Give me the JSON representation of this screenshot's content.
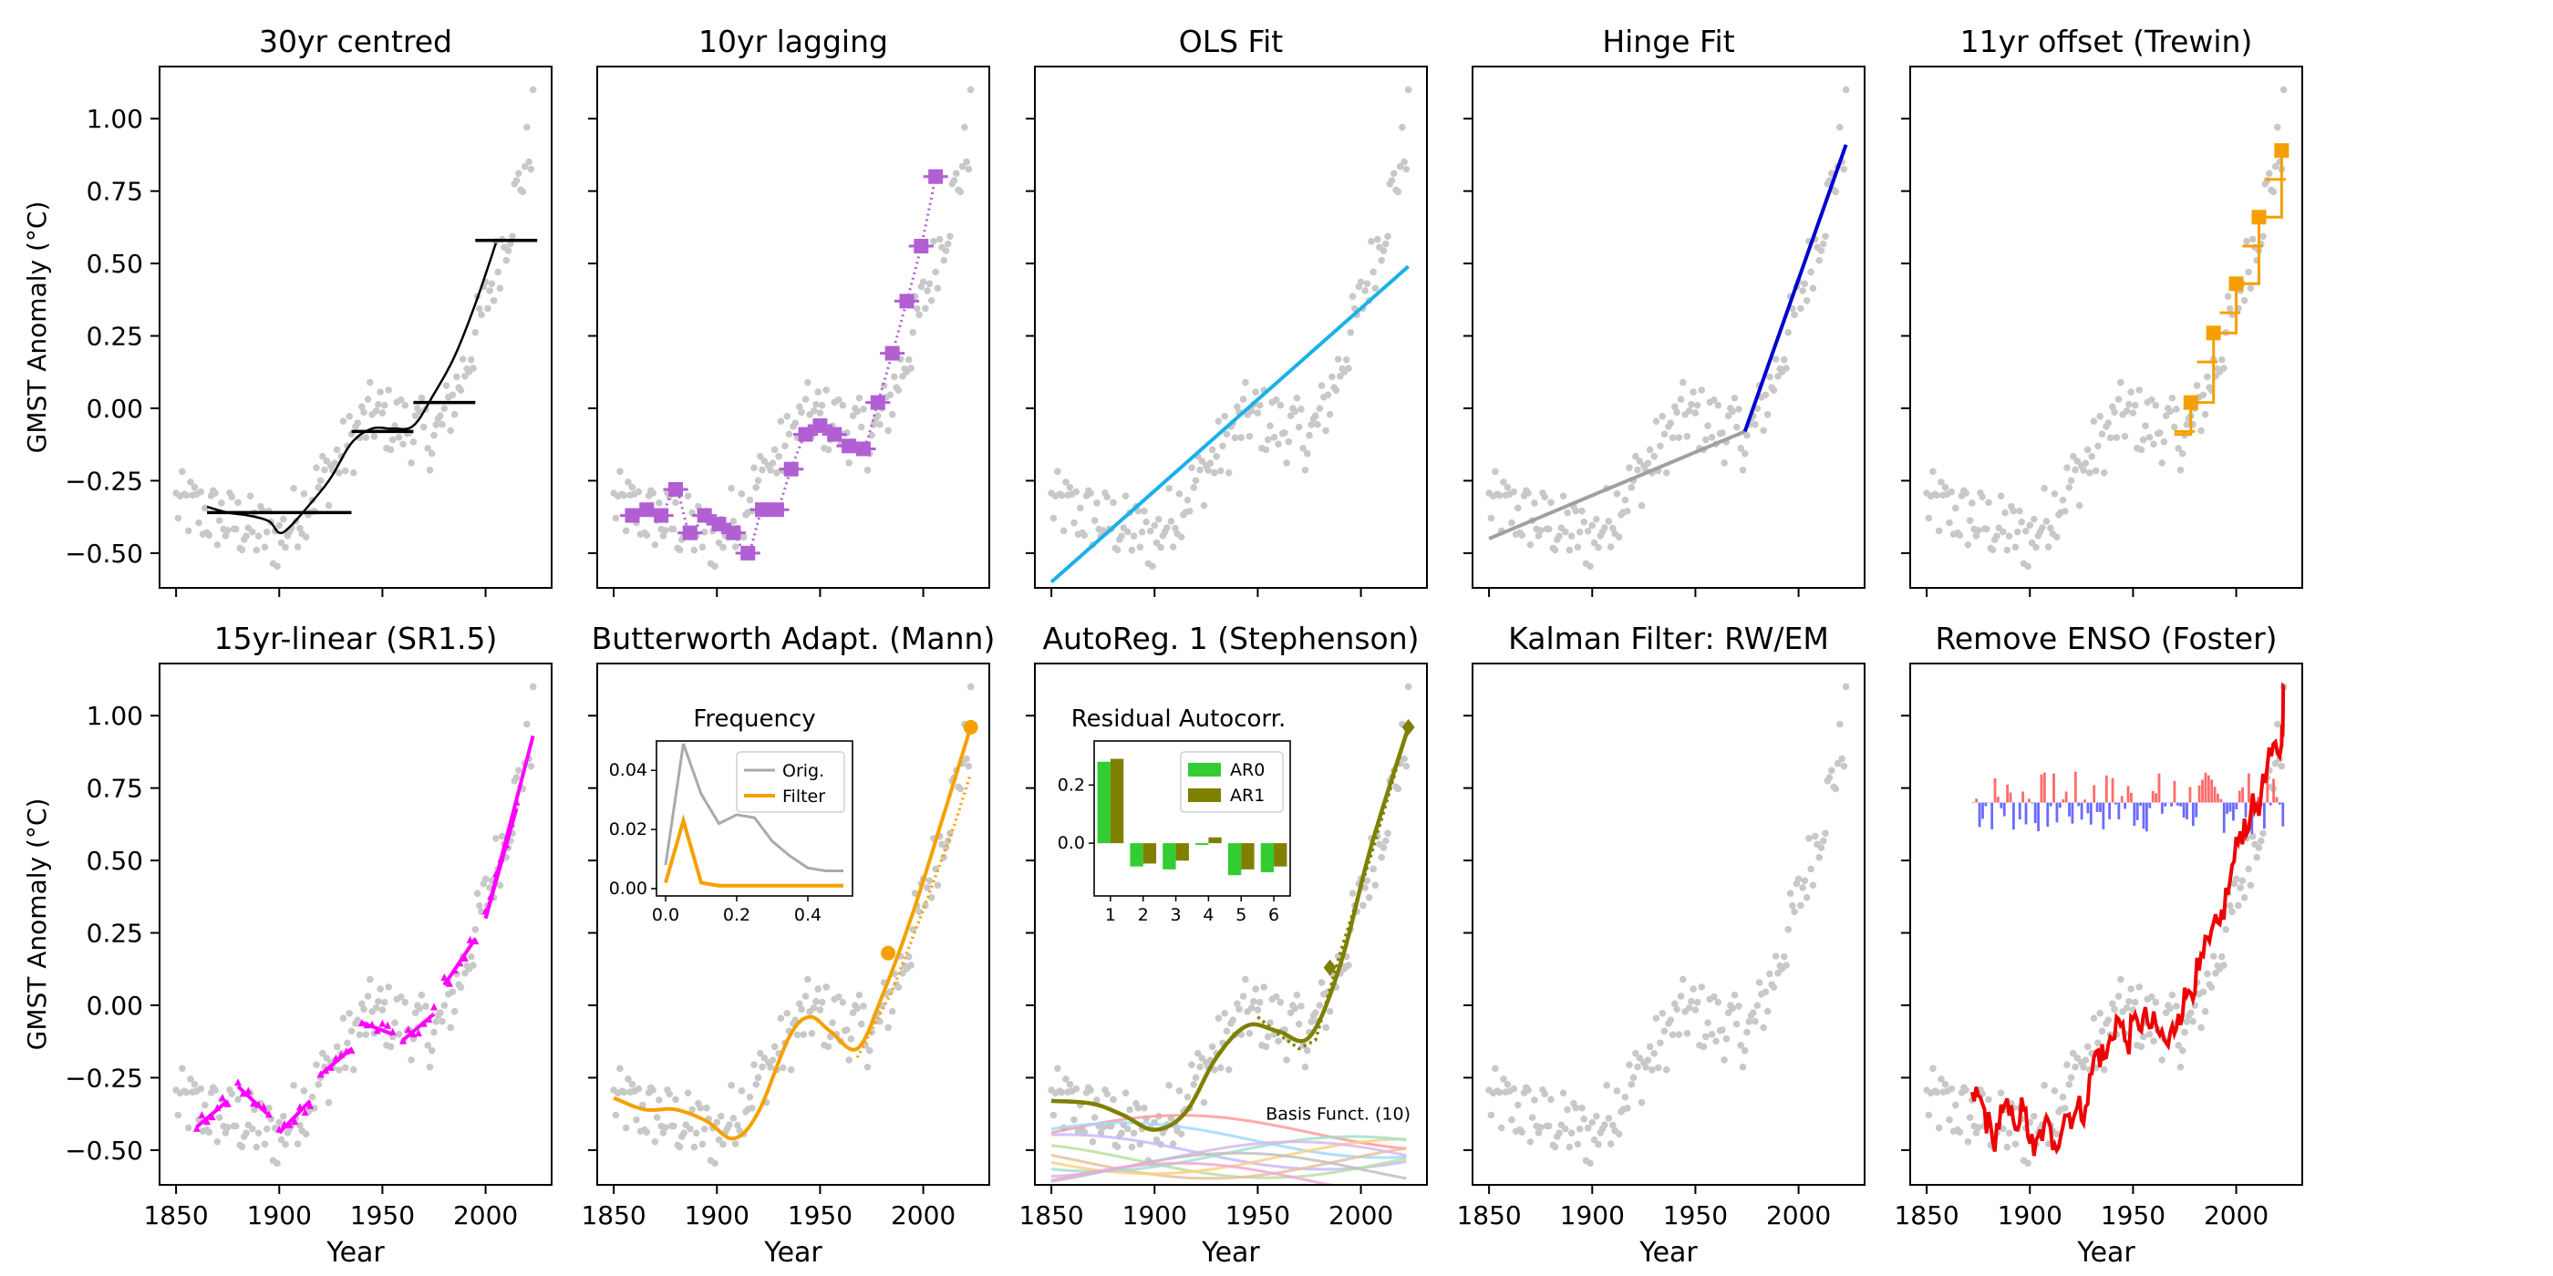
{
  "figure": {
    "ylabel": "GMST Anomaly (°C)",
    "xlabel": "Year",
    "xlim": [
      1842,
      2032
    ],
    "ylim": [
      -0.62,
      1.18
    ],
    "xticks": [
      1850,
      1900,
      1950,
      2000
    ],
    "yticks": [
      -0.5,
      -0.25,
      0.0,
      0.25,
      0.5,
      0.75,
      1.0
    ],
    "ytick_labels": [
      "−0.50",
      "−0.25",
      "0.00",
      "0.25",
      "0.50",
      "0.75",
      "1.00"
    ],
    "colors": {
      "observations": "#c8c8c8",
      "centred": "#000000",
      "lagging": "#b15fd3",
      "ols": "#1ab0e8",
      "hinge_early": "#a0a0a0",
      "hinge_late": "#0000cc",
      "trewin": "#f5a000",
      "sr15": "#ff00ff",
      "butterworth": "#f5a000",
      "autoreg": "#7f7f00",
      "enso_line": "#ee0000",
      "enso_pos": "#ff6b6b",
      "enso_neg": "#6b6bff"
    }
  },
  "chart_data": [
    {
      "type": "line",
      "title": "30yr centred",
      "xlabel": "",
      "ylabel": "GMST Anomaly (°C)",
      "show_xticklabels": false,
      "show_yticklabels": true,
      "series": [
        {
          "x": [
            1865,
            1875,
            1885,
            1895,
            1900,
            1905,
            1915,
            1925,
            1935,
            1945,
            1955,
            1965,
            1975,
            1985,
            1995,
            2005
          ],
          "values": [
            -0.34,
            -0.36,
            -0.37,
            -0.39,
            -0.43,
            -0.41,
            -0.33,
            -0.24,
            -0.12,
            -0.07,
            -0.07,
            -0.06,
            0.05,
            0.18,
            0.36,
            0.57
          ]
        }
      ],
      "segments": [
        {
          "x": [
            1865,
            1895
          ],
          "y": [
            -0.36,
            -0.36
          ]
        },
        {
          "x": [
            1895,
            1935
          ],
          "y": [
            -0.36,
            -0.36
          ]
        },
        {
          "x": [
            1935,
            1965
          ],
          "y": [
            -0.08,
            -0.08
          ]
        },
        {
          "x": [
            1965,
            1995
          ],
          "y": [
            0.02,
            0.02
          ]
        },
        {
          "x": [
            1995,
            2025
          ],
          "y": [
            0.58,
            0.58
          ]
        }
      ]
    },
    {
      "type": "scatter",
      "title": "10yr lagging",
      "xlabel": "",
      "ylabel": "",
      "show_xticklabels": false,
      "show_yticklabels": false,
      "series": [
        {
          "x": [
            1859,
            1866,
            1873,
            1880,
            1887,
            1894,
            1901,
            1908,
            1915,
            1922,
            1929,
            1936,
            1943,
            1950,
            1957,
            1964,
            1971,
            1978,
            1985,
            1992,
            1999,
            2006,
            2013,
            2020
          ],
          "values": [
            -0.37,
            -0.35,
            -0.37,
            -0.28,
            -0.43,
            -0.37,
            -0.4,
            -0.43,
            -0.5,
            -0.35,
            -0.35,
            -0.21,
            -0.09,
            -0.06,
            -0.09,
            -0.13,
            -0.14,
            0.02,
            0.19,
            0.37,
            0.56,
            0.8,
            0.8,
            0.8
          ]
        }
      ]
    },
    {
      "type": "line",
      "title": "OLS Fit",
      "xlabel": "",
      "ylabel": "",
      "show_xticklabels": false,
      "show_yticklabels": false,
      "series": [
        {
          "x": [
            1850,
            2023
          ],
          "values": [
            -0.6,
            0.49
          ]
        }
      ]
    },
    {
      "type": "line",
      "title": "Hinge Fit",
      "xlabel": "",
      "ylabel": "",
      "show_xticklabels": false,
      "show_yticklabels": false,
      "series": [
        {
          "x": [
            1850,
            1974
          ],
          "values": [
            -0.45,
            -0.08
          ]
        },
        {
          "x": [
            1974,
            2023
          ],
          "values": [
            -0.08,
            0.91
          ]
        }
      ]
    },
    {
      "type": "scatter",
      "title": "11yr offset (Trewin)",
      "xlabel": "",
      "ylabel": "",
      "show_xticklabels": false,
      "show_yticklabels": false,
      "series": [
        {
          "x": [
            1978,
            1989,
            2000,
            2011,
            2022,
            2022
          ],
          "values": [
            0.02,
            0.26,
            0.43,
            0.66,
            0.89,
            0.89
          ]
        }
      ]
    },
    {
      "type": "line",
      "title": "15yr-linear (SR1.5)",
      "xlabel": "Year",
      "ylabel": "GMST Anomaly (°C)",
      "show_xticklabels": true,
      "show_yticklabels": true,
      "series": [
        {
          "x": [
            1860,
            1875,
            1880,
            1895,
            1900,
            1915,
            1920,
            1935,
            1940,
            1955,
            1960,
            1975,
            1980,
            1995,
            2000,
            2015,
            2023
          ],
          "values": [
            -0.42,
            -0.33,
            -0.28,
            -0.38,
            -0.44,
            -0.33,
            -0.24,
            -0.15,
            -0.06,
            -0.1,
            -0.12,
            -0.03,
            0.07,
            0.23,
            0.3,
            0.68,
            0.93
          ]
        }
      ]
    },
    {
      "type": "line",
      "title": "Butterworth Adapt. (Mann)",
      "xlabel": "Year",
      "ylabel": "",
      "show_xticklabels": true,
      "show_yticklabels": false,
      "series": [
        {
          "x": [
            1850,
            1865,
            1880,
            1895,
            1908,
            1920,
            1935,
            1945,
            1955,
            1968,
            1980,
            1995,
            2010,
            2023
          ],
          "values": [
            -0.32,
            -0.36,
            -0.36,
            -0.4,
            -0.46,
            -0.37,
            -0.11,
            -0.04,
            -0.09,
            -0.15,
            0.03,
            0.32,
            0.66,
            0.96
          ]
        }
      ],
      "inset": {
        "title": "Frequency",
        "type": "line",
        "xlim": [
          0,
          0.5
        ],
        "ylim": [
          0,
          0.045
        ],
        "xticks": [
          0.0,
          0.2,
          0.4
        ],
        "yticks": [
          0.0,
          0.02,
          0.04
        ],
        "ytick_labels": [
          "0.00",
          "0.02",
          "0.04"
        ],
        "legend": [
          "Orig.",
          "Filter"
        ],
        "series": [
          {
            "name": "Orig.",
            "x": [
              0,
              0.05,
              0.1,
              0.15,
              0.2,
              0.25,
              0.3,
              0.35,
              0.4,
              0.45,
              0.5
            ],
            "values": [
              0.008,
              0.049,
              0.032,
              0.022,
              0.025,
              0.024,
              0.016,
              0.011,
              0.007,
              0.006,
              0.006
            ]
          },
          {
            "name": "Filter",
            "x": [
              0,
              0.05,
              0.1,
              0.15,
              0.2,
              0.3,
              0.4,
              0.5
            ],
            "values": [
              0.002,
              0.023,
              0.002,
              0.001,
              0.001,
              0.001,
              0.001,
              0.001
            ]
          }
        ]
      }
    },
    {
      "type": "line",
      "title": "AutoReg. 1 (Stephenson)",
      "xlabel": "Year",
      "ylabel": "",
      "show_xticklabels": true,
      "show_yticklabels": false,
      "series": [
        {
          "x": [
            1850,
            1870,
            1885,
            1900,
            1915,
            1930,
            1945,
            1960,
            1975,
            1990,
            2005,
            2023
          ],
          "values": [
            -0.33,
            -0.34,
            -0.38,
            -0.43,
            -0.37,
            -0.18,
            -0.07,
            -0.09,
            -0.11,
            0.14,
            0.55,
            0.96
          ]
        }
      ],
      "annotation": "Basis Funct. (10)",
      "inset": {
        "title": "Residual Autocorr.",
        "type": "bar",
        "categories": [
          "1",
          "2",
          "3",
          "4",
          "5",
          "6"
        ],
        "ylim": [
          -0.15,
          0.32
        ],
        "yticks": [
          0.0,
          0.2
        ],
        "ytick_labels": [
          "0.0",
          "0.2"
        ],
        "legend": [
          "AR0",
          "AR1"
        ],
        "series": [
          {
            "name": "AR0",
            "values": [
              0.28,
              -0.08,
              -0.09,
              0.0,
              -0.11,
              -0.1
            ]
          },
          {
            "name": "AR1",
            "values": [
              0.29,
              -0.07,
              -0.06,
              0.02,
              -0.09,
              -0.08
            ]
          }
        ]
      }
    },
    {
      "type": "scatter",
      "title": "Kalman Filter: RW/EM",
      "xlabel": "Year",
      "ylabel": "",
      "show_xticklabels": true,
      "show_yticklabels": false,
      "series": []
    },
    {
      "type": "line",
      "title": "Remove ENSO (Foster)",
      "xlabel": "Year",
      "ylabel": "",
      "show_xticklabels": true,
      "show_yticklabels": false,
      "series": [
        {
          "x": [
            1872,
            1877,
            1882,
            1887,
            1892,
            1897,
            1902,
            1907,
            1912,
            1917,
            1922,
            1927,
            1932,
            1937,
            1942,
            1947,
            1952,
            1957,
            1962,
            1967,
            1972,
            1977,
            1982,
            1987,
            1992,
            1997,
            2002,
            2007,
            2012,
            2017,
            2022,
            2023
          ],
          "values": [
            -0.3,
            -0.34,
            -0.47,
            -0.36,
            -0.4,
            -0.36,
            -0.52,
            -0.41,
            -0.48,
            -0.38,
            -0.37,
            -0.35,
            -0.16,
            -0.18,
            -0.04,
            -0.13,
            -0.05,
            -0.06,
            -0.09,
            -0.14,
            -0.03,
            0.05,
            0.12,
            0.22,
            0.28,
            0.43,
            0.6,
            0.66,
            0.72,
            0.86,
            0.9,
            1.1
          ]
        }
      ],
      "enso_baseline": 0.7
    }
  ]
}
